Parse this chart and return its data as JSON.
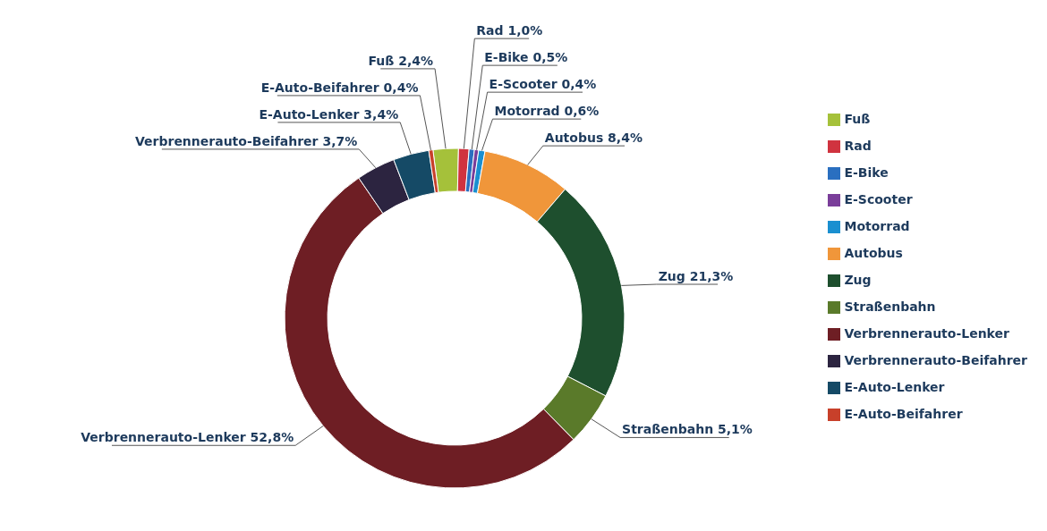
{
  "chart_data": {
    "type": "donut",
    "categories": [
      "Fuß",
      "Rad",
      "E-Bike",
      "E-Scooter",
      "Motorrad",
      "Autobus",
      "Zug",
      "Straßenbahn",
      "Verbrennerauto-Lenker",
      "Verbrennerauto-Beifahrer",
      "E-Auto-Lenker",
      "E-Auto-Beifahrer"
    ],
    "values": [
      2.4,
      1.0,
      0.5,
      0.4,
      0.6,
      8.4,
      21.3,
      5.1,
      52.8,
      3.7,
      3.4,
      0.4
    ],
    "colors": [
      "#a5c13a",
      "#d0333f",
      "#2a6fc0",
      "#7a3e9a",
      "#1a8fd0",
      "#f0963a",
      "#1e4f2e",
      "#5a7a2a",
      "#6e1e24",
      "#2c2440",
      "#154a66",
      "#c8402a"
    ],
    "value_labels": [
      "2,4%",
      "1,0%",
      "0,5%",
      "0,4%",
      "0,6%",
      "8,4%",
      "21,3%",
      "5,1%",
      "52,8%",
      "3,7%",
      "3,4%",
      "0,4%"
    ],
    "legend": "right"
  }
}
